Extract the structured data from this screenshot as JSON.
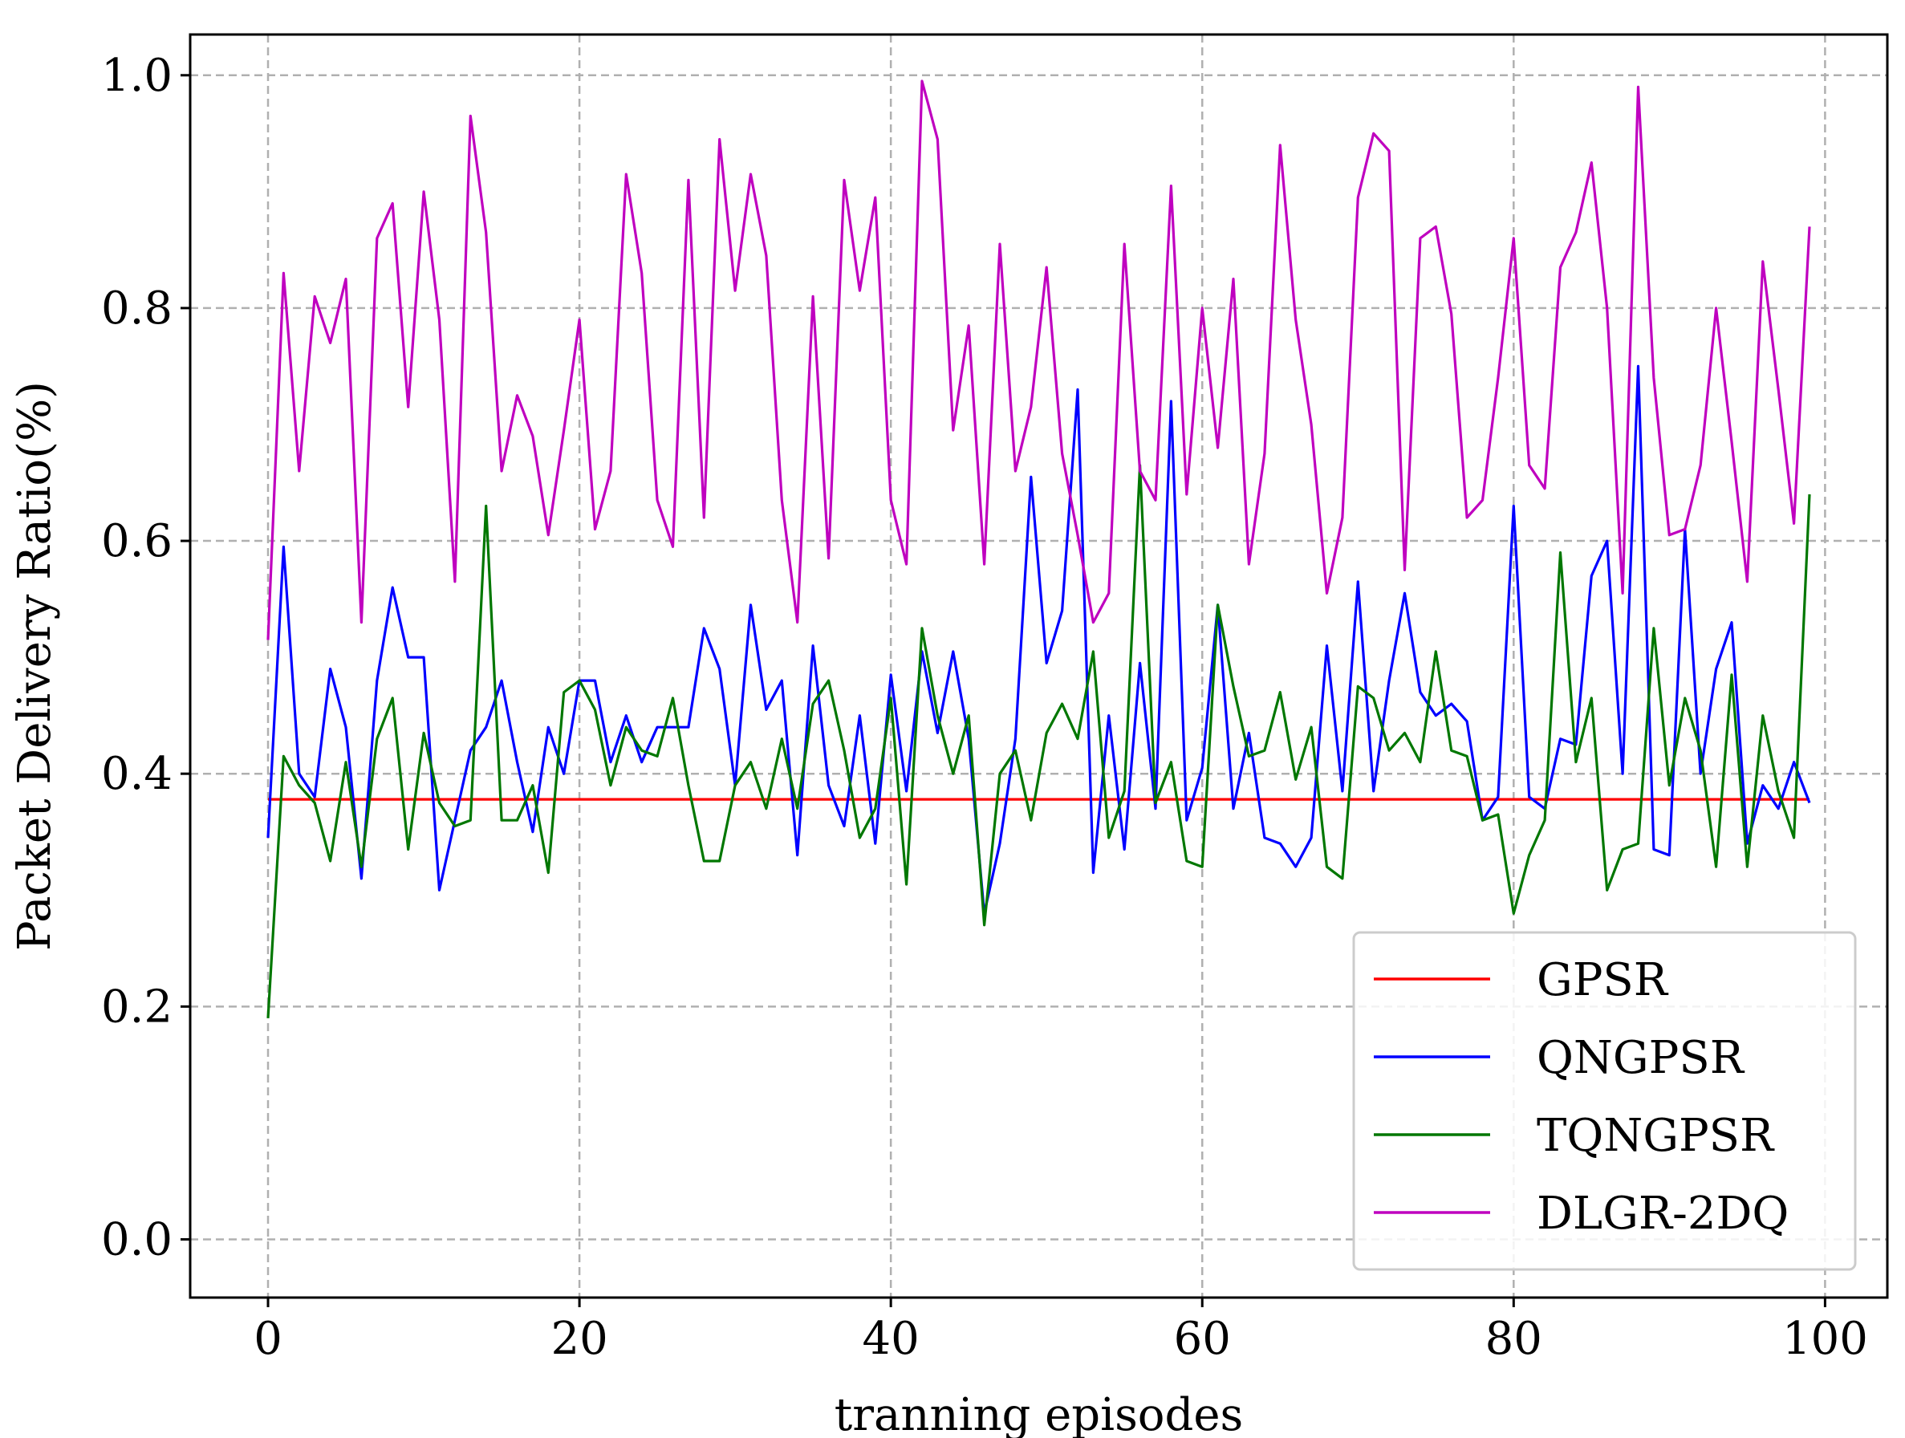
{
  "chart_data": {
    "type": "line",
    "xlabel": "tranning episodes",
    "ylabel": "Packet Delivery Ratio(%)",
    "xlim": [
      -5,
      104
    ],
    "ylim": [
      -0.05,
      1.035
    ],
    "xticks": [
      0,
      20,
      40,
      60,
      80,
      100
    ],
    "xtick_labels": [
      "0",
      "20",
      "40",
      "60",
      "80",
      "100"
    ],
    "yticks": [
      0.0,
      0.2,
      0.4,
      0.6,
      0.8,
      1.0
    ],
    "ytick_labels": [
      "0.0",
      "0.2",
      "0.4",
      "0.6",
      "0.8",
      "1.0"
    ],
    "grid": true,
    "legend_position": "lower-right",
    "x_start": 0,
    "series": [
      {
        "name": "GPSR",
        "color": "#ff0000",
        "values": [
          0.378,
          0.378,
          0.378,
          0.378,
          0.378,
          0.378,
          0.378,
          0.378,
          0.378,
          0.378,
          0.378,
          0.378,
          0.378,
          0.378,
          0.378,
          0.378,
          0.378,
          0.378,
          0.378,
          0.378,
          0.378,
          0.378,
          0.378,
          0.378,
          0.378,
          0.378,
          0.378,
          0.378,
          0.378,
          0.378,
          0.378,
          0.378,
          0.378,
          0.378,
          0.378,
          0.378,
          0.378,
          0.378,
          0.378,
          0.378,
          0.378,
          0.378,
          0.378,
          0.378,
          0.378,
          0.378,
          0.378,
          0.378,
          0.378,
          0.378,
          0.378,
          0.378,
          0.378,
          0.378,
          0.378,
          0.378,
          0.378,
          0.378,
          0.378,
          0.378,
          0.378,
          0.378,
          0.378,
          0.378,
          0.378,
          0.378,
          0.378,
          0.378,
          0.378,
          0.378,
          0.378,
          0.378,
          0.378,
          0.378,
          0.378,
          0.378,
          0.378,
          0.378,
          0.378,
          0.378,
          0.378,
          0.378,
          0.378,
          0.378,
          0.378,
          0.378,
          0.378,
          0.378,
          0.378,
          0.378,
          0.378,
          0.378,
          0.378,
          0.378,
          0.378,
          0.378,
          0.378,
          0.378,
          0.378,
          0.378
        ]
      },
      {
        "name": "QNGPSR",
        "color": "#0000ff",
        "values": [
          0.345,
          0.595,
          0.4,
          0.38,
          0.49,
          0.44,
          0.31,
          0.48,
          0.56,
          0.5,
          0.5,
          0.3,
          0.36,
          0.42,
          0.44,
          0.48,
          0.41,
          0.35,
          0.44,
          0.4,
          0.48,
          0.48,
          0.41,
          0.45,
          0.41,
          0.44,
          0.44,
          0.44,
          0.525,
          0.49,
          0.39,
          0.545,
          0.455,
          0.48,
          0.33,
          0.51,
          0.39,
          0.355,
          0.45,
          0.34,
          0.485,
          0.385,
          0.505,
          0.435,
          0.505,
          0.43,
          0.28,
          0.34,
          0.43,
          0.655,
          0.495,
          0.54,
          0.73,
          0.315,
          0.45,
          0.335,
          0.495,
          0.37,
          0.72,
          0.36,
          0.405,
          0.545,
          0.37,
          0.435,
          0.345,
          0.34,
          0.32,
          0.345,
          0.51,
          0.385,
          0.565,
          0.385,
          0.48,
          0.555,
          0.47,
          0.45,
          0.46,
          0.445,
          0.36,
          0.38,
          0.63,
          0.38,
          0.37,
          0.43,
          0.425,
          0.57,
          0.6,
          0.4,
          0.75,
          0.335,
          0.33,
          0.61,
          0.4,
          0.49,
          0.53,
          0.34,
          0.39,
          0.37,
          0.41,
          0.375
        ]
      },
      {
        "name": "TQNGPSR",
        "color": "#007700",
        "values": [
          0.19,
          0.415,
          0.39,
          0.375,
          0.325,
          0.41,
          0.32,
          0.43,
          0.465,
          0.335,
          0.435,
          0.375,
          0.355,
          0.36,
          0.63,
          0.36,
          0.36,
          0.39,
          0.315,
          0.47,
          0.48,
          0.455,
          0.39,
          0.44,
          0.42,
          0.415,
          0.465,
          0.39,
          0.325,
          0.325,
          0.39,
          0.41,
          0.37,
          0.43,
          0.37,
          0.46,
          0.48,
          0.42,
          0.345,
          0.37,
          0.465,
          0.305,
          0.525,
          0.45,
          0.4,
          0.45,
          0.27,
          0.4,
          0.42,
          0.36,
          0.435,
          0.46,
          0.43,
          0.505,
          0.345,
          0.385,
          0.665,
          0.375,
          0.41,
          0.325,
          0.32,
          0.545,
          0.475,
          0.415,
          0.42,
          0.47,
          0.395,
          0.44,
          0.32,
          0.31,
          0.475,
          0.465,
          0.42,
          0.435,
          0.41,
          0.505,
          0.42,
          0.415,
          0.36,
          0.365,
          0.28,
          0.33,
          0.36,
          0.59,
          0.41,
          0.465,
          0.3,
          0.335,
          0.34,
          0.525,
          0.39,
          0.465,
          0.42,
          0.32,
          0.485,
          0.32,
          0.45,
          0.385,
          0.345,
          0.64
        ]
      },
      {
        "name": "DLGR-2DQ",
        "color": "#bf00bf",
        "values": [
          0.515,
          0.83,
          0.66,
          0.81,
          0.77,
          0.825,
          0.53,
          0.86,
          0.89,
          0.715,
          0.9,
          0.79,
          0.565,
          0.965,
          0.865,
          0.66,
          0.725,
          0.69,
          0.605,
          0.695,
          0.79,
          0.61,
          0.66,
          0.915,
          0.83,
          0.635,
          0.595,
          0.91,
          0.62,
          0.945,
          0.815,
          0.915,
          0.845,
          0.635,
          0.53,
          0.81,
          0.585,
          0.91,
          0.815,
          0.895,
          0.635,
          0.58,
          0.995,
          0.945,
          0.695,
          0.785,
          0.58,
          0.855,
          0.66,
          0.715,
          0.835,
          0.675,
          0.605,
          0.53,
          0.555,
          0.855,
          0.66,
          0.635,
          0.905,
          0.64,
          0.8,
          0.68,
          0.825,
          0.58,
          0.675,
          0.94,
          0.79,
          0.7,
          0.555,
          0.62,
          0.895,
          0.95,
          0.935,
          0.575,
          0.86,
          0.87,
          0.795,
          0.62,
          0.635,
          0.74,
          0.86,
          0.665,
          0.645,
          0.835,
          0.865,
          0.925,
          0.8,
          0.555,
          0.99,
          0.74,
          0.605,
          0.61,
          0.665,
          0.8,
          0.685,
          0.565,
          0.84,
          0.73,
          0.615,
          0.87
        ]
      }
    ]
  }
}
